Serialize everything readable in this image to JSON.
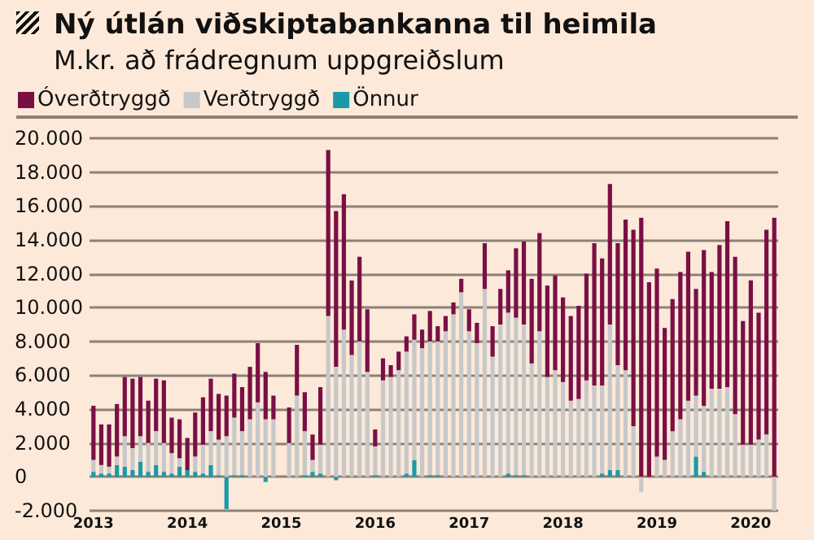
{
  "chart_data": {
    "type": "bar",
    "title": "Ný útlán viðskiptabankanna til heimila",
    "subtitle": "M.kr. að frádregnum uppgreiðslum",
    "categories": [
      "2013",
      null,
      null,
      null,
      null,
      null,
      null,
      null,
      null,
      null,
      null,
      null,
      "2014",
      null,
      null,
      null,
      null,
      null,
      null,
      null,
      null,
      null,
      null,
      null,
      "2015",
      null,
      null,
      null,
      null,
      null,
      null,
      null,
      null,
      null,
      null,
      null,
      "2016",
      null,
      null,
      null,
      null,
      null,
      null,
      null,
      null,
      null,
      null,
      null,
      "2017",
      null,
      null,
      null,
      null,
      null,
      null,
      null,
      null,
      null,
      null,
      null,
      "2018",
      null,
      null,
      null,
      null,
      null,
      null,
      null,
      null,
      null,
      null,
      null,
      "2019",
      null,
      null,
      null,
      null,
      null,
      null,
      null,
      null,
      null,
      null,
      null,
      "2020",
      null,
      null,
      null
    ],
    "stacked": true,
    "series": [
      {
        "name": "Önnur",
        "color": "#1a9aa8",
        "values": [
          300,
          200,
          200,
          700,
          600,
          400,
          900,
          300,
          700,
          300,
          200,
          600,
          400,
          300,
          200,
          700,
          100,
          -1900,
          100,
          100,
          0,
          0,
          -300,
          0,
          null,
          0,
          0,
          100,
          300,
          200,
          0,
          -200,
          0,
          0,
          0,
          0,
          100,
          0,
          0,
          0,
          200,
          1000,
          0,
          100,
          100,
          0,
          0,
          0,
          0,
          0,
          0,
          0,
          0,
          200,
          100,
          100,
          0,
          0,
          0,
          0,
          0,
          0,
          0,
          0,
          0,
          200,
          400,
          400,
          0,
          0,
          0,
          0,
          0,
          0,
          0,
          0,
          0,
          1200,
          300,
          0,
          0,
          0,
          0,
          0,
          0,
          0,
          0,
          0
        ]
      },
      {
        "name": "Verðtryggð",
        "color": "#c8c8c8",
        "values": [
          700,
          500,
          400,
          500,
          1800,
          1300,
          1500,
          1700,
          2000,
          1700,
          1200,
          500,
          0,
          900,
          1700,
          2000,
          2100,
          2400,
          3400,
          2600,
          3400,
          4400,
          3400,
          3400,
          null,
          2000,
          4800,
          2600,
          700,
          1700,
          9500,
          6500,
          8700,
          7200,
          8000,
          6200,
          1700,
          5700,
          5900,
          6300,
          7200,
          7100,
          7600,
          7900,
          7900,
          8600,
          9600,
          10900,
          8600,
          7900,
          11100,
          7100,
          9000,
          9500,
          9300,
          8900,
          6700,
          8600,
          5900,
          6300,
          5600,
          4500,
          4600,
          5700,
          5400,
          5200,
          8600,
          6200,
          6300,
          3000,
          -900,
          0,
          1200,
          1000,
          2700,
          3400,
          4500,
          3600,
          3900,
          5200,
          5200,
          5300,
          3700,
          1900,
          1900,
          2200,
          2500,
          -2000
        ]
      },
      {
        "name": "Óverðtryggð",
        "color": "#7a0f45",
        "values": [
          3200,
          2400,
          2500,
          3100,
          3500,
          4100,
          3500,
          2500,
          3100,
          3700,
          2100,
          2300,
          1900,
          2600,
          2800,
          3100,
          2700,
          2400,
          2600,
          2600,
          3100,
          3500,
          2800,
          1400,
          null,
          2100,
          3000,
          2300,
          1500,
          3400,
          9800,
          9200,
          8000,
          4400,
          5000,
          3700,
          1000,
          1300,
          700,
          1100,
          900,
          1500,
          1100,
          1800,
          900,
          900,
          700,
          800,
          1300,
          1200,
          2700,
          1800,
          2100,
          2500,
          4100,
          4900,
          5000,
          5800,
          5400,
          5600,
          5000,
          5000,
          5500,
          6300,
          8400,
          7500,
          8300,
          7200,
          8900,
          11600,
          15300,
          11500,
          11100,
          7800,
          7800,
          8700,
          8800,
          6300,
          9200,
          6900,
          8500,
          9800,
          9300,
          7300,
          9700,
          7500,
          12100,
          15300
        ]
      }
    ],
    "ylim": [
      -2000,
      20000
    ],
    "yticks": [
      {
        "value": -2000,
        "label": "-2.000"
      },
      0,
      {
        "value": 2000,
        "label": "2.000"
      },
      {
        "value": 4000,
        "label": "4.000"
      },
      {
        "value": 6000,
        "label": "6.000"
      },
      {
        "value": 8000,
        "label": "8.000"
      },
      {
        "value": 10000,
        "label": "10.000"
      },
      {
        "value": 12000,
        "label": "12.000"
      },
      {
        "value": 14000,
        "label": "14.000"
      },
      {
        "value": 16000,
        "label": "16.000"
      },
      {
        "value": 18000,
        "label": "18.000"
      },
      {
        "value": 20000,
        "label": "20.000"
      }
    ],
    "grid": "y",
    "legend": "top left"
  }
}
